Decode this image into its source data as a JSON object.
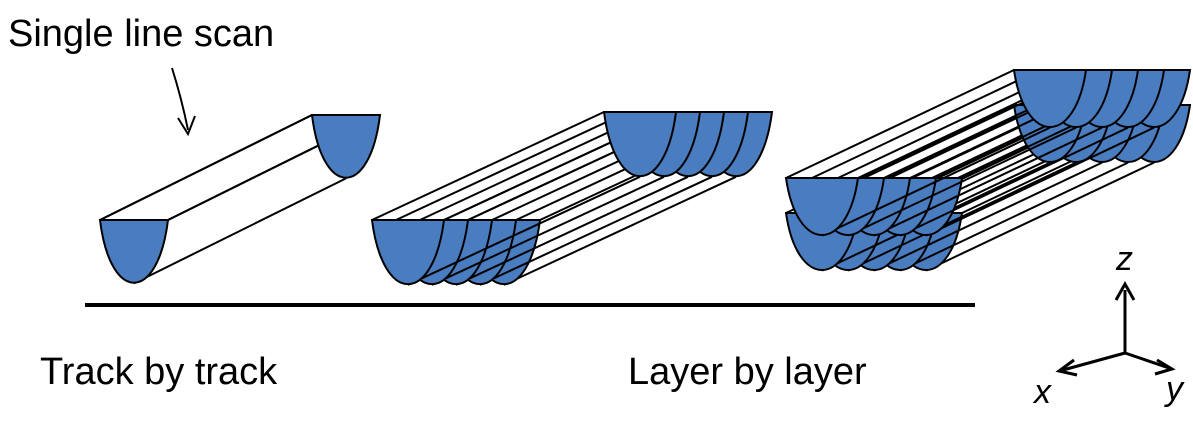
{
  "annotation": {
    "single_line_scan": "Single line scan"
  },
  "captions": {
    "left": "Track by track",
    "right": "Layer by layer"
  },
  "axes": {
    "z": "z",
    "x": "x",
    "y": "y"
  },
  "colors": {
    "melt_pool": "#4a7cc0",
    "outline": "#000000",
    "background": "#ffffff"
  }
}
